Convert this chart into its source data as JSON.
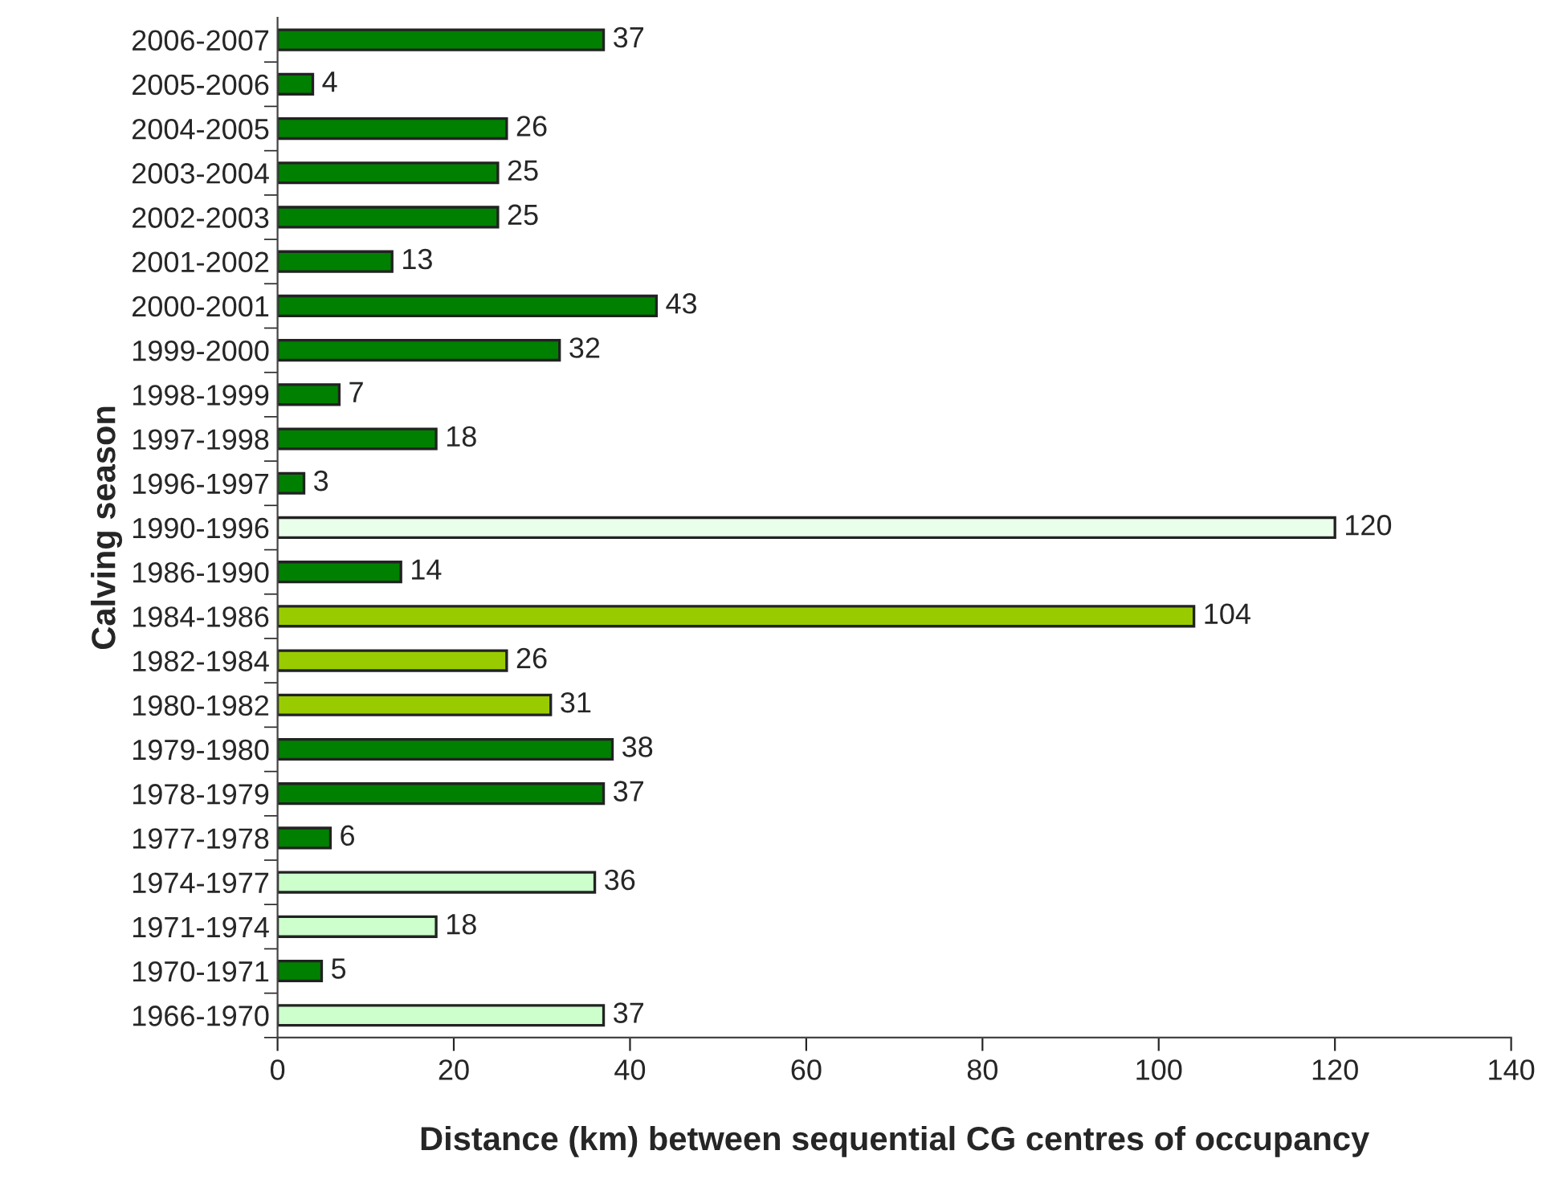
{
  "chart_data": {
    "type": "bar",
    "orientation": "horizontal",
    "xlabel": "Distance (km) between sequential CG centres of occupancy",
    "ylabel": "Calving season",
    "categories": [
      "2006-2007",
      "2005-2006",
      "2004-2005",
      "2003-2004",
      "2002-2003",
      "2001-2002",
      "2000-2001",
      "1999-2000",
      "1998-1999",
      "1997-1998",
      "1996-1997",
      "1990-1996",
      "1986-1990",
      "1984-1986",
      "1982-1984",
      "1980-1982",
      "1979-1980",
      "1978-1979",
      "1977-1978",
      "1974-1977",
      "1971-1974",
      "1970-1971",
      "1966-1970"
    ],
    "values": [
      37,
      4,
      26,
      25,
      25,
      13,
      43,
      32,
      7,
      18,
      3,
      120,
      14,
      104,
      26,
      31,
      38,
      37,
      6,
      36,
      18,
      5,
      37
    ],
    "colors": [
      "#008000",
      "#008000",
      "#008000",
      "#008000",
      "#008000",
      "#008000",
      "#008000",
      "#008000",
      "#008000",
      "#008000",
      "#008000",
      "#eaffea",
      "#008000",
      "#99cc00",
      "#99cc00",
      "#99cc00",
      "#008000",
      "#008000",
      "#008000",
      "#ccffcc",
      "#ccffcc",
      "#008000",
      "#ccffcc"
    ],
    "data_labels": true,
    "xlim": [
      0,
      140
    ],
    "xticks": [
      0,
      20,
      40,
      60,
      80,
      100,
      120,
      140
    ],
    "grid": false,
    "legend": false
  }
}
